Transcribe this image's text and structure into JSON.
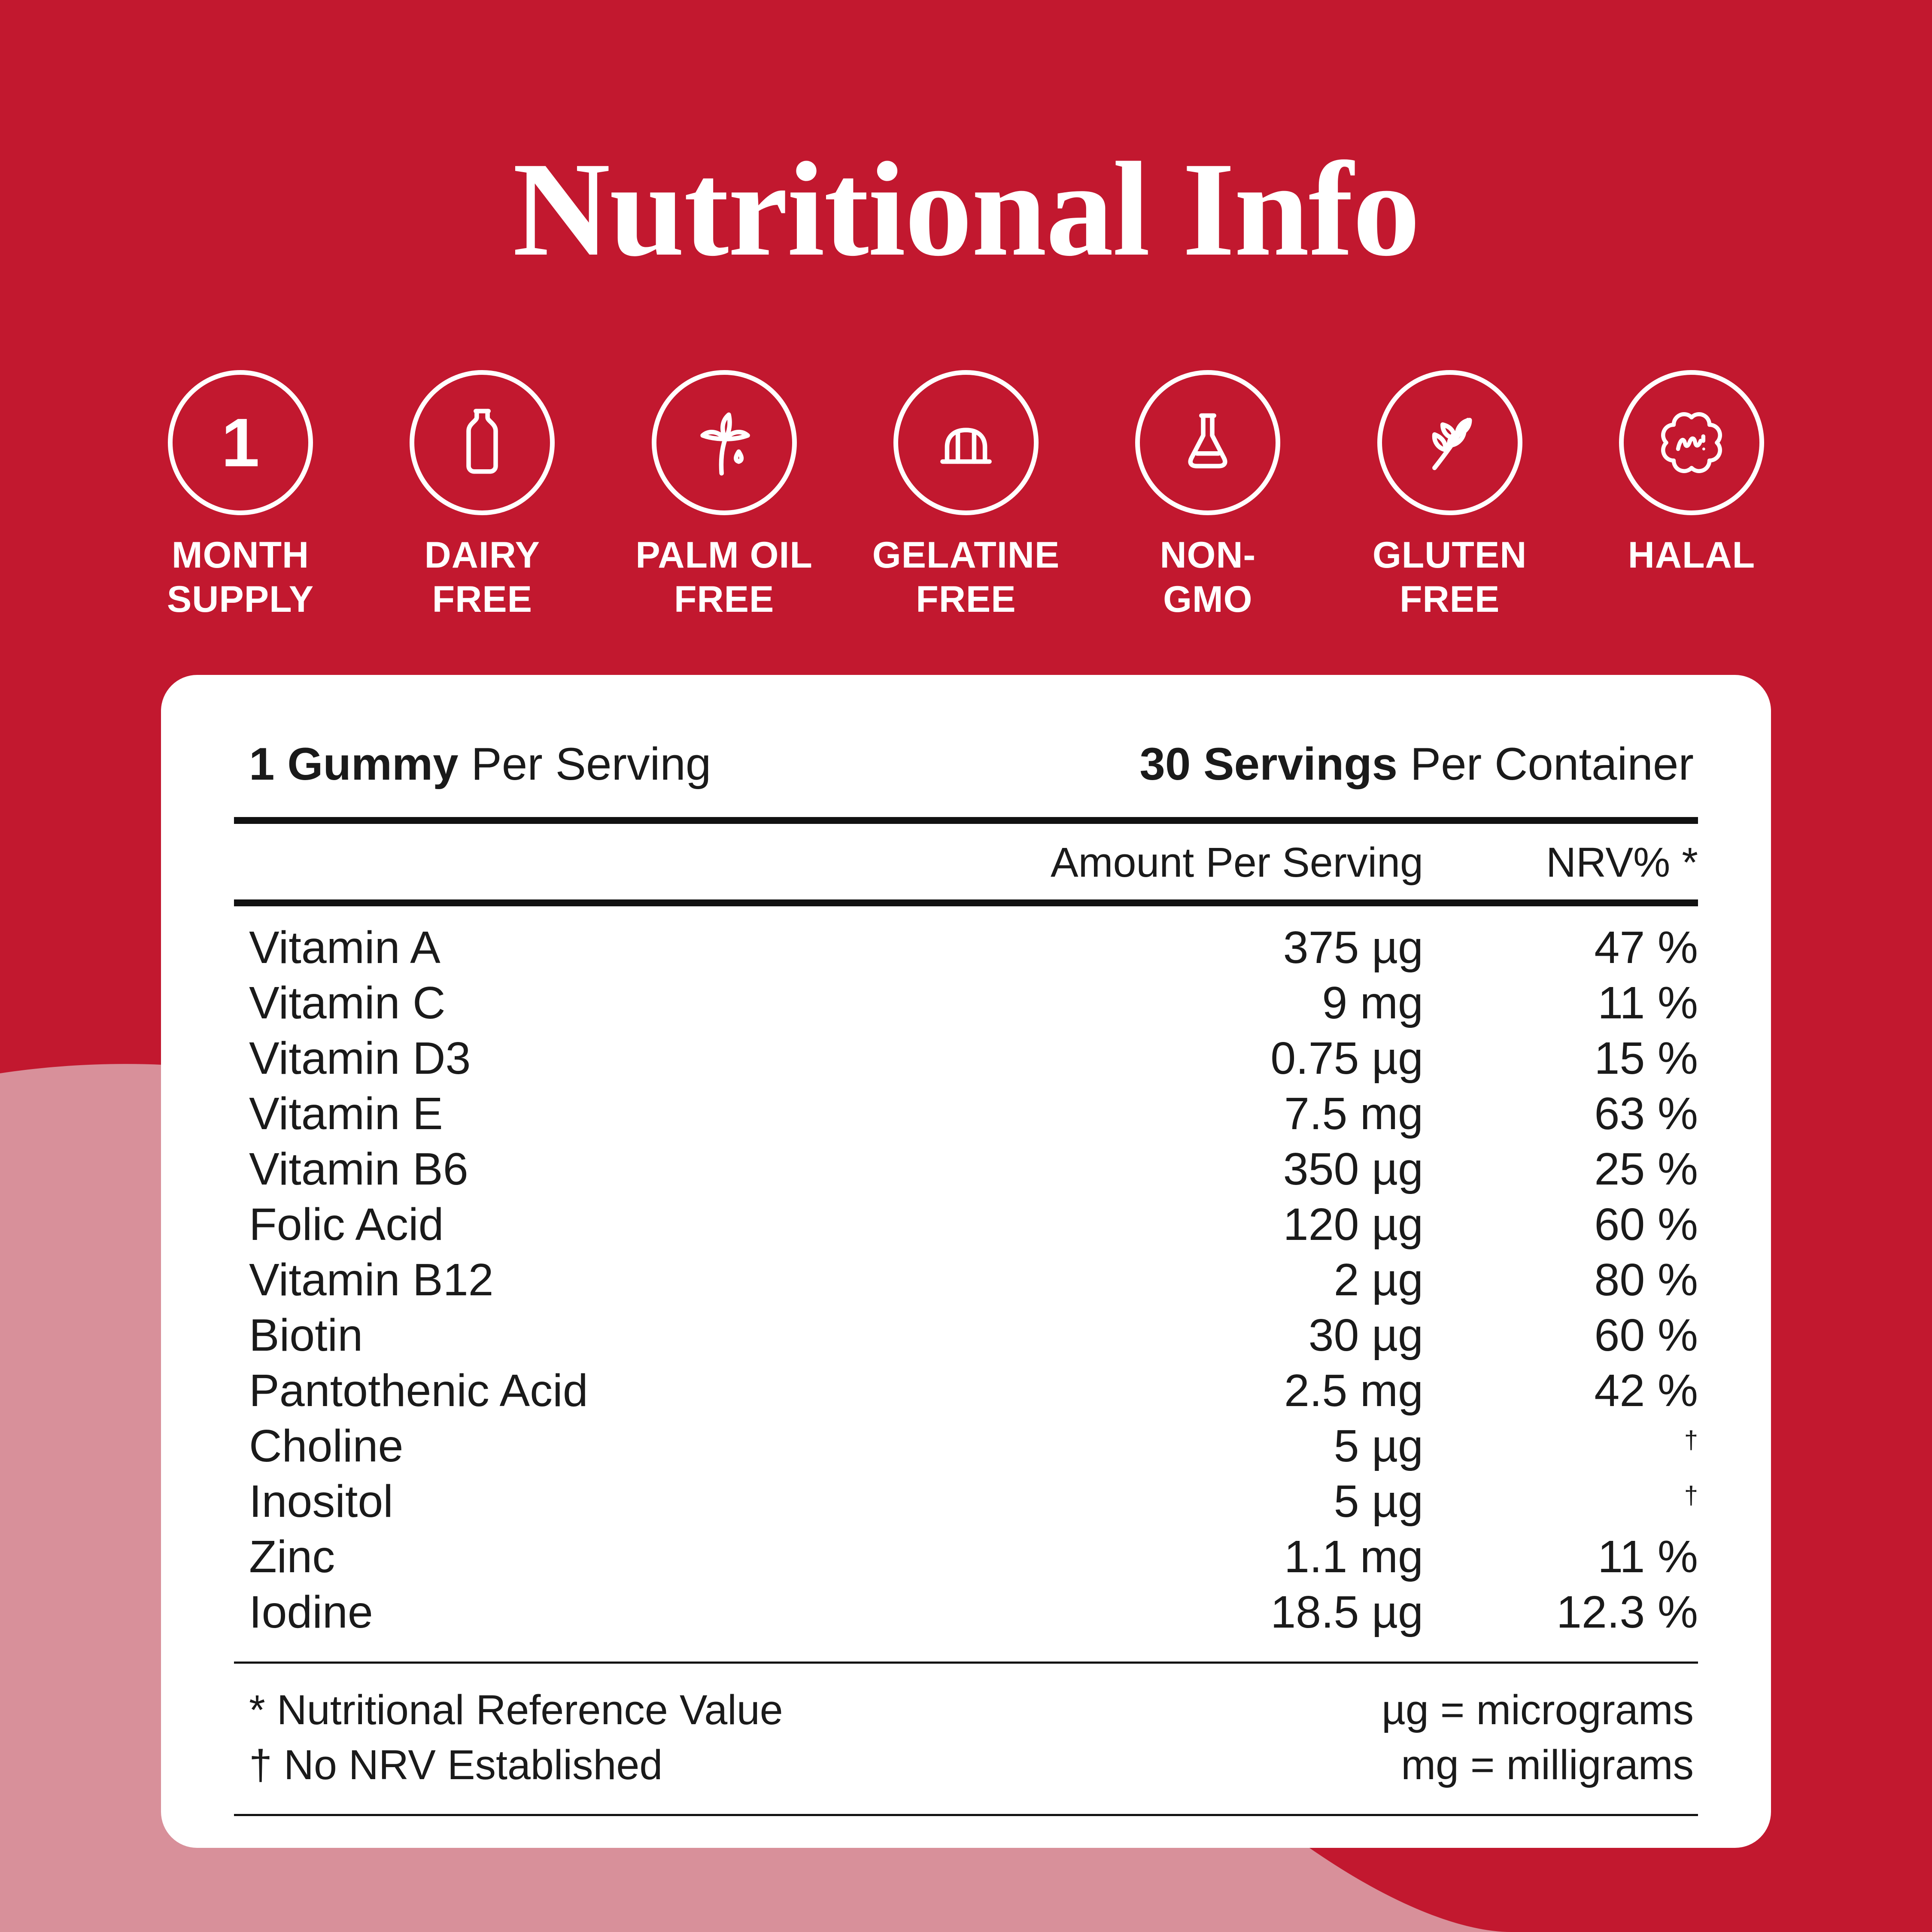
{
  "page": {
    "title": "Nutritional Info",
    "colors": {
      "background_red": "#C2182F",
      "background_pink": "#D8909A",
      "card_bg": "#FFFFFF",
      "text_dark": "#1A1A1A",
      "white": "#FFFFFF"
    }
  },
  "badges": [
    {
      "id": "month-supply",
      "icon": "number-one-icon",
      "number": "1",
      "label": "MONTH\nSUPPLY"
    },
    {
      "id": "dairy-free",
      "icon": "milk-bottle-icon",
      "label": "DAIRY\nFREE"
    },
    {
      "id": "palm-oil-free",
      "icon": "palm-tree-icon",
      "label": "PALM OIL\nFREE"
    },
    {
      "id": "gelatine-free",
      "icon": "jelly-icon",
      "label": "GELATINE\nFREE"
    },
    {
      "id": "non-gmo",
      "icon": "flask-icon",
      "label": "NON-\nGMO"
    },
    {
      "id": "gluten-free",
      "icon": "wheat-sprig-icon",
      "label": "GLUTEN\nFREE"
    },
    {
      "id": "halal",
      "icon": "halal-stamp-icon",
      "label": "HALAL"
    }
  ],
  "panel": {
    "serving_left_bold": "1 Gummy",
    "serving_left_rest": " Per Serving",
    "serving_right_bold": "30 Servings",
    "serving_right_rest": " Per Container",
    "col_amount": "Amount Per Serving",
    "col_nrv": "NRV% *",
    "rows": [
      {
        "name": "Vitamin A",
        "amount": "375 µg",
        "nrv": "47 %"
      },
      {
        "name": "Vitamin C",
        "amount": "9 mg",
        "nrv": "11 %"
      },
      {
        "name": "Vitamin D3",
        "amount": "0.75 µg",
        "nrv": "15 %"
      },
      {
        "name": "Vitamin E",
        "amount": "7.5 mg",
        "nrv": "63 %"
      },
      {
        "name": "Vitamin B6",
        "amount": "350 µg",
        "nrv": "25 %"
      },
      {
        "name": "Folic Acid",
        "amount": "120 µg",
        "nrv": "60 %"
      },
      {
        "name": "Vitamin B12",
        "amount": "2 µg",
        "nrv": "80 %"
      },
      {
        "name": "Biotin",
        "amount": "30 µg",
        "nrv": "60 %"
      },
      {
        "name": "Pantothenic Acid",
        "amount": "2.5 mg",
        "nrv": "42 %"
      },
      {
        "name": "Choline",
        "amount": "5 µg",
        "nrv": "†"
      },
      {
        "name": "Inositol",
        "amount": "5 µg",
        "nrv": "†"
      },
      {
        "name": "Zinc",
        "amount": "1.1 mg",
        "nrv": "11 %"
      },
      {
        "name": "Iodine",
        "amount": "18.5 µg",
        "nrv": "12.3 %"
      }
    ],
    "footnotes_left": [
      "* Nutritional Reference Value",
      "† No NRV Established"
    ],
    "footnotes_right": [
      "µg = micrograms",
      "mg = milligrams"
    ]
  }
}
